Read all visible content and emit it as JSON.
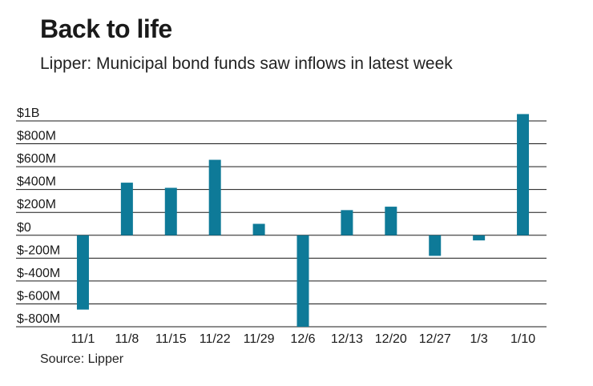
{
  "header": {
    "title": "Back to life",
    "subtitle": "Lipper: Municipal bond funds saw inflows in latest week"
  },
  "footer": {
    "source": "Source: Lipper"
  },
  "colors": {
    "bar": "#0e7a98",
    "grid": "#1a1a1a",
    "text": "#1a1a1a"
  },
  "chart_data": {
    "type": "bar",
    "title": "Back to life",
    "subtitle": "Lipper: Municipal bond funds saw inflows in latest week",
    "xlabel": "",
    "ylabel": "",
    "categories": [
      "11/1",
      "11/8",
      "11/15",
      "11/22",
      "11/29",
      "12/6",
      "12/13",
      "12/20",
      "12/27",
      "1/3",
      "1/10"
    ],
    "values": [
      -650,
      460,
      415,
      660,
      100,
      -800,
      220,
      250,
      -180,
      -45,
      1060
    ],
    "unit": "millions of dollars",
    "ylim": [
      -800,
      1000
    ],
    "yticks": [
      1000,
      800,
      600,
      400,
      200,
      0,
      -200,
      -400,
      -600,
      -800
    ],
    "ytick_labels": [
      "$1B",
      "$800M",
      "$600M",
      "$400M",
      "$200M",
      "$0",
      "$-200M",
      "$-400M",
      "$-600M",
      "$-800M"
    ],
    "grid": true,
    "legend": "none"
  }
}
